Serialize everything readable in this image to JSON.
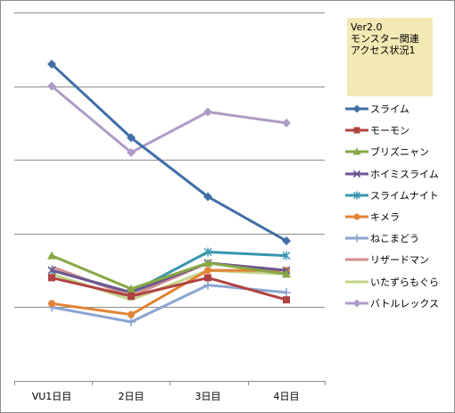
{
  "chart_data": {
    "type": "line",
    "categories": [
      "VU1日目",
      "2日目",
      "3日目",
      "4日目"
    ],
    "ylim": [
      0,
      100
    ],
    "grid": true,
    "legend_position": "right",
    "title_lines": [
      "Ver2.0",
      "モンスター関連",
      "アクセス状況1"
    ],
    "series": [
      {
        "name": "スライム",
        "values": [
          86,
          66,
          50,
          38
        ],
        "color": "#3f6fa6",
        "marker": "diamond"
      },
      {
        "name": "モーモン",
        "values": [
          28,
          23,
          28,
          22
        ],
        "color": "#b04342",
        "marker": "square"
      },
      {
        "name": "ブリズニャン",
        "values": [
          34,
          25,
          32,
          29
        ],
        "color": "#86a844",
        "marker": "triangle"
      },
      {
        "name": "ホイミスライム",
        "values": [
          30,
          24,
          32,
          30
        ],
        "color": "#6d5691",
        "marker": "x"
      },
      {
        "name": "スライムナイト",
        "values": [
          30,
          24,
          35,
          34
        ],
        "color": "#3896ae",
        "marker": "star"
      },
      {
        "name": "キメラ",
        "values": [
          21,
          18,
          30,
          30
        ],
        "color": "#e28434",
        "marker": "circle"
      },
      {
        "name": "ねこまどう",
        "values": [
          20,
          16,
          26,
          24
        ],
        "color": "#8aa6d1",
        "marker": "plus"
      },
      {
        "name": "リザードマン",
        "values": [
          31,
          23,
          32,
          30
        ],
        "color": "#d38f8e",
        "marker": "none"
      },
      {
        "name": "いたずらもぐら",
        "values": [
          29,
          22,
          30,
          29
        ],
        "color": "#c2d489",
        "marker": "none"
      },
      {
        "name": "バトルレックス",
        "values": [
          80,
          62,
          73,
          70
        ],
        "color": "#ad9cc5",
        "marker": "diamond"
      }
    ]
  }
}
